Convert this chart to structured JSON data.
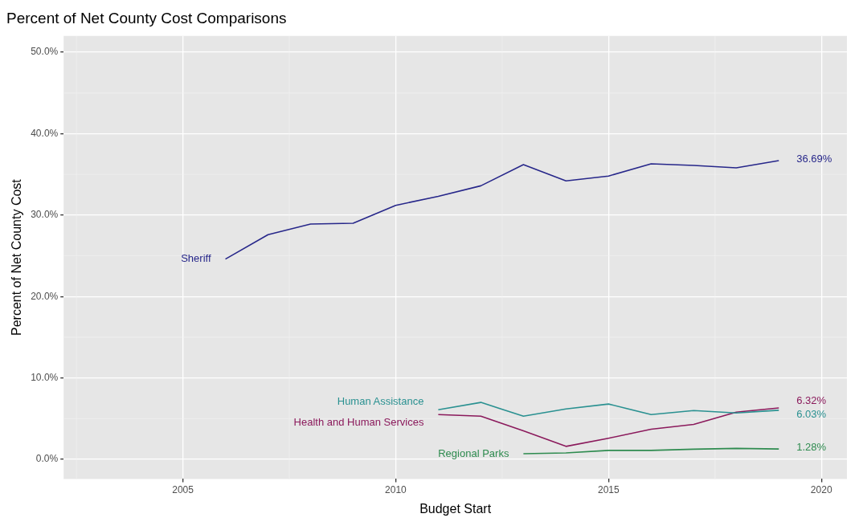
{
  "chart_data": {
    "type": "line",
    "title": "Percent of Net County Cost Comparisons",
    "xlabel": "Budget Start",
    "ylabel": "Percent of Net County Cost",
    "xlim": [
      2002.2,
      2020.6
    ],
    "xticks": [
      2005,
      2010,
      2015,
      2020
    ],
    "ylim": [
      -2.4,
      52
    ],
    "yticks": [
      {
        "value": 0,
        "label": "0.0%"
      },
      {
        "value": 10,
        "label": "10.0%"
      },
      {
        "value": 20,
        "label": "20.0%"
      },
      {
        "value": 30,
        "label": "30.0%"
      },
      {
        "value": 40,
        "label": "40.0%"
      },
      {
        "value": 50,
        "label": "50.0%"
      }
    ],
    "grid": true,
    "legend": false,
    "series": [
      {
        "name": "Sheriff",
        "color": "#27278a",
        "x": [
          2006,
          2007,
          2008,
          2009,
          2010,
          2011,
          2012,
          2013,
          2014,
          2015,
          2016,
          2017,
          2018,
          2019
        ],
        "values": [
          24.6,
          27.6,
          28.9,
          29.0,
          31.2,
          32.3,
          33.6,
          36.2,
          34.2,
          34.8,
          36.3,
          36.1,
          35.8,
          36.69
        ],
        "value_labels": [
          null,
          null,
          null,
          null,
          null,
          null,
          null,
          null,
          null,
          null,
          null,
          null,
          null,
          "36.69%"
        ]
      },
      {
        "name": "Human Assistance",
        "color": "#2a9191",
        "x": [
          2011,
          2012,
          2013,
          2014,
          2015,
          2016,
          2017,
          2018,
          2019
        ],
        "values": [
          6.1,
          7.0,
          5.3,
          6.2,
          6.8,
          5.5,
          6.0,
          5.7,
          6.03
        ],
        "value_labels": [
          null,
          null,
          null,
          null,
          null,
          null,
          null,
          null,
          "6.03%"
        ]
      },
      {
        "name": "Health and Human Services",
        "color": "#8b1a5c",
        "x": [
          2011,
          2012,
          2013,
          2014,
          2015,
          2016,
          2017,
          2018,
          2019
        ],
        "values": [
          5.5,
          5.3,
          3.5,
          1.6,
          2.6,
          3.7,
          4.3,
          5.8,
          6.32
        ],
        "value_labels": [
          null,
          null,
          null,
          null,
          null,
          null,
          null,
          null,
          "6.32%"
        ]
      },
      {
        "name": "Regional Parks",
        "color": "#2e8b4f",
        "x": [
          2013,
          2014,
          2015,
          2016,
          2017,
          2018,
          2019
        ],
        "values": [
          0.7,
          0.8,
          1.1,
          1.1,
          1.25,
          1.35,
          1.28
        ],
        "value_labels": [
          null,
          null,
          null,
          null,
          null,
          null,
          "1.28%"
        ]
      }
    ]
  }
}
